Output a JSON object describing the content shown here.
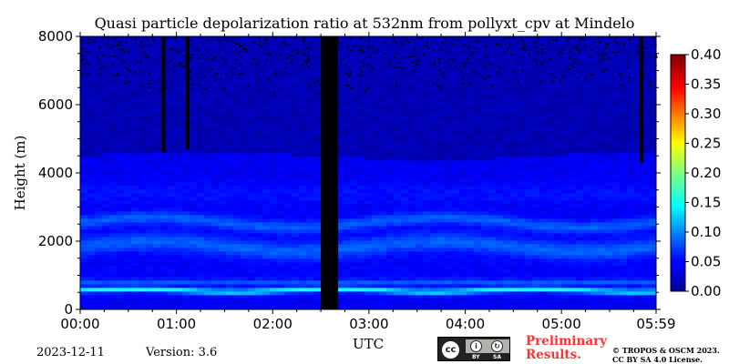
{
  "chart_data": {
    "type": "heatmap",
    "title": "Quasi particle depolarization ratio at 532nm from pollyxt_cpv at Mindelo",
    "xlabel": "UTC",
    "ylabel": "Height (m)",
    "x_ticks": [
      "00:00",
      "01:00",
      "02:00",
      "03:00",
      "04:00",
      "05:00",
      "05:59"
    ],
    "x_tick_hours": [
      0,
      1,
      2,
      3,
      4,
      5,
      5.983
    ],
    "xlim_hours": [
      0,
      5.983
    ],
    "y_ticks": [
      "0",
      "2000",
      "4000",
      "6000",
      "8000"
    ],
    "y_tick_values": [
      0,
      2000,
      4000,
      6000,
      8000
    ],
    "ylim": [
      0,
      8000
    ],
    "colorbar": {
      "ticks": [
        "0.00",
        "0.05",
        "0.10",
        "0.15",
        "0.20",
        "0.25",
        "0.30",
        "0.35",
        "0.40"
      ],
      "range": [
        0,
        0.4
      ],
      "colormap": "jet"
    },
    "no_data_color": "#000000",
    "gaps_utc_hours": [
      [
        2.5,
        2.68
      ]
    ],
    "layers": [
      {
        "height_range_m": [
          400,
          700
        ],
        "value": 0.15
      },
      {
        "height_range_m": [
          700,
          900
        ],
        "value": 0.09
      },
      {
        "height_range_m": [
          1500,
          2200
        ],
        "value": 0.09
      },
      {
        "height_range_m": [
          2300,
          2800
        ],
        "value": 0.09
      },
      {
        "height_range_m": [
          2800,
          4500
        ],
        "value": 0.05
      },
      {
        "height_range_m": [
          4500,
          8000
        ],
        "value": 0.02
      }
    ],
    "layer_top_m": 4500,
    "features": [
      {
        "type": "vertical_no_data_streak",
        "time_utc": "00:52",
        "height_range_m": [
          4600,
          8000
        ]
      },
      {
        "type": "vertical_no_data_streak",
        "time_utc": "01:07",
        "height_range_m": [
          4700,
          8000
        ]
      },
      {
        "type": "vertical_no_data_streak",
        "time_utc": "05:50",
        "height_range_m": [
          4300,
          8000
        ]
      }
    ]
  },
  "footer": {
    "date": "2023-12-11",
    "version": "Version: 3.6",
    "preliminary_line1": "Preliminary",
    "preliminary_line2": "Results.",
    "copyright_line1": "© TROPOS & OSCM 2023.",
    "copyright_line2": "CC BY SA 4.0 License.",
    "license_by": "BY",
    "license_sa": "SA",
    "license_cc": "cc"
  },
  "colors": {
    "background": "#00008f",
    "no_data": "#000000",
    "preliminary": "#ff3333"
  }
}
